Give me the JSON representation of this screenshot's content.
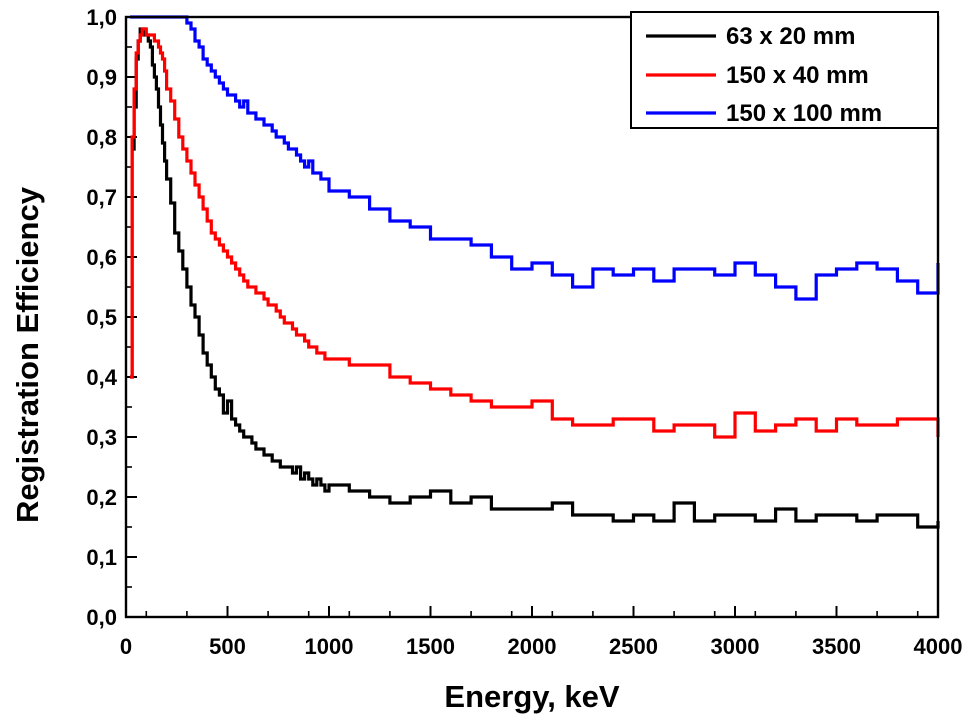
{
  "chart_data": {
    "type": "line",
    "title": "",
    "xlabel": "Energy, keV",
    "ylabel": "Registration Efficiency",
    "xlim": [
      0,
      4000
    ],
    "ylim": [
      0,
      1.0
    ],
    "x_ticks": [
      "0",
      "500",
      "1000",
      "1500",
      "2000",
      "2500",
      "3000",
      "3500",
      "4000"
    ],
    "y_ticks": [
      "0,0",
      "0,1",
      "0,2",
      "0,3",
      "0,4",
      "0,5",
      "0,6",
      "0,7",
      "0,8",
      "0,9",
      "1,0"
    ],
    "grid": false,
    "legend_position": "top-right",
    "series": [
      {
        "name": "63 x 20 mm",
        "color": "#000000",
        "x": [
          20,
          30,
          40,
          50,
          60,
          70,
          80,
          90,
          100,
          110,
          120,
          130,
          140,
          150,
          160,
          170,
          180,
          190,
          200,
          220,
          240,
          260,
          280,
          300,
          320,
          340,
          360,
          380,
          400,
          420,
          440,
          460,
          480,
          500,
          520,
          540,
          560,
          580,
          600,
          620,
          640,
          660,
          680,
          700,
          720,
          740,
          760,
          780,
          800,
          820,
          840,
          860,
          880,
          900,
          920,
          940,
          960,
          980,
          1000,
          1100,
          1200,
          1300,
          1400,
          1500,
          1600,
          1700,
          1800,
          1900,
          2000,
          2100,
          2200,
          2300,
          2400,
          2500,
          2600,
          2700,
          2800,
          2900,
          3000,
          3100,
          3200,
          3300,
          3400,
          3500,
          3600,
          3700,
          3800,
          3900,
          4000
        ],
        "y": [
          0.4,
          0.78,
          0.85,
          0.93,
          0.96,
          0.98,
          0.98,
          0.97,
          0.97,
          0.96,
          0.95,
          0.92,
          0.9,
          0.88,
          0.85,
          0.82,
          0.79,
          0.76,
          0.73,
          0.69,
          0.64,
          0.61,
          0.58,
          0.55,
          0.52,
          0.5,
          0.47,
          0.44,
          0.42,
          0.4,
          0.38,
          0.37,
          0.34,
          0.36,
          0.33,
          0.32,
          0.31,
          0.3,
          0.3,
          0.29,
          0.28,
          0.28,
          0.27,
          0.27,
          0.26,
          0.26,
          0.25,
          0.25,
          0.25,
          0.24,
          0.25,
          0.23,
          0.24,
          0.23,
          0.22,
          0.23,
          0.22,
          0.21,
          0.22,
          0.21,
          0.2,
          0.19,
          0.2,
          0.21,
          0.19,
          0.2,
          0.18,
          0.18,
          0.18,
          0.19,
          0.17,
          0.17,
          0.16,
          0.17,
          0.16,
          0.19,
          0.16,
          0.17,
          0.17,
          0.16,
          0.18,
          0.16,
          0.17,
          0.17,
          0.16,
          0.17,
          0.17,
          0.15,
          0.16
        ]
      },
      {
        "name": "150 x 40 mm",
        "color": "#ff0000",
        "x": [
          20,
          30,
          40,
          50,
          60,
          70,
          80,
          90,
          100,
          110,
          120,
          130,
          140,
          150,
          160,
          170,
          180,
          190,
          200,
          220,
          240,
          260,
          280,
          300,
          320,
          340,
          360,
          380,
          400,
          420,
          440,
          460,
          480,
          500,
          520,
          540,
          560,
          580,
          600,
          620,
          640,
          660,
          680,
          700,
          720,
          740,
          760,
          780,
          800,
          820,
          840,
          860,
          880,
          900,
          920,
          940,
          960,
          980,
          1000,
          1100,
          1200,
          1300,
          1400,
          1500,
          1600,
          1700,
          1800,
          1900,
          2000,
          2100,
          2200,
          2300,
          2400,
          2500,
          2600,
          2700,
          2800,
          2900,
          3000,
          3100,
          3200,
          3300,
          3400,
          3500,
          3600,
          3700,
          3800,
          3900,
          4000
        ],
        "y": [
          0.4,
          0.8,
          0.88,
          0.94,
          0.96,
          0.97,
          0.98,
          0.98,
          0.97,
          0.97,
          0.97,
          0.97,
          0.96,
          0.96,
          0.95,
          0.94,
          0.93,
          0.91,
          0.88,
          0.86,
          0.83,
          0.8,
          0.78,
          0.76,
          0.74,
          0.72,
          0.7,
          0.68,
          0.66,
          0.64,
          0.63,
          0.62,
          0.61,
          0.6,
          0.59,
          0.58,
          0.57,
          0.56,
          0.55,
          0.55,
          0.54,
          0.54,
          0.53,
          0.52,
          0.52,
          0.51,
          0.5,
          0.49,
          0.49,
          0.48,
          0.47,
          0.47,
          0.46,
          0.45,
          0.45,
          0.44,
          0.44,
          0.43,
          0.43,
          0.42,
          0.42,
          0.4,
          0.39,
          0.38,
          0.37,
          0.36,
          0.35,
          0.35,
          0.36,
          0.33,
          0.32,
          0.32,
          0.33,
          0.33,
          0.31,
          0.32,
          0.32,
          0.3,
          0.34,
          0.31,
          0.32,
          0.33,
          0.31,
          0.33,
          0.32,
          0.32,
          0.33,
          0.33,
          0.3
        ]
      },
      {
        "name": "150 x 100 mm",
        "color": "#0000ff",
        "x": [
          20,
          40,
          60,
          80,
          100,
          120,
          140,
          160,
          180,
          200,
          220,
          240,
          260,
          280,
          300,
          320,
          340,
          360,
          380,
          400,
          420,
          440,
          460,
          480,
          500,
          520,
          540,
          560,
          580,
          600,
          620,
          640,
          660,
          680,
          700,
          720,
          740,
          760,
          780,
          800,
          820,
          840,
          860,
          880,
          900,
          920,
          940,
          960,
          980,
          1000,
          1100,
          1200,
          1300,
          1400,
          1500,
          1600,
          1700,
          1800,
          1900,
          2000,
          2100,
          2200,
          2300,
          2400,
          2500,
          2600,
          2700,
          2800,
          2900,
          3000,
          3100,
          3200,
          3300,
          3400,
          3500,
          3600,
          3700,
          3800,
          3900,
          4000
        ],
        "y": [
          1.0,
          1.0,
          1.0,
          1.0,
          1.0,
          1.0,
          1.0,
          1.0,
          1.0,
          1.0,
          1.0,
          1.0,
          1.0,
          1.0,
          0.99,
          0.98,
          0.96,
          0.95,
          0.93,
          0.92,
          0.91,
          0.9,
          0.89,
          0.88,
          0.87,
          0.87,
          0.86,
          0.85,
          0.86,
          0.84,
          0.84,
          0.83,
          0.83,
          0.82,
          0.82,
          0.81,
          0.8,
          0.8,
          0.79,
          0.78,
          0.78,
          0.77,
          0.76,
          0.75,
          0.76,
          0.74,
          0.74,
          0.73,
          0.73,
          0.71,
          0.7,
          0.68,
          0.66,
          0.65,
          0.63,
          0.63,
          0.62,
          0.6,
          0.58,
          0.59,
          0.57,
          0.55,
          0.58,
          0.57,
          0.58,
          0.56,
          0.58,
          0.58,
          0.57,
          0.59,
          0.57,
          0.55,
          0.53,
          0.57,
          0.58,
          0.59,
          0.58,
          0.56,
          0.54,
          0.59
        ]
      }
    ]
  }
}
